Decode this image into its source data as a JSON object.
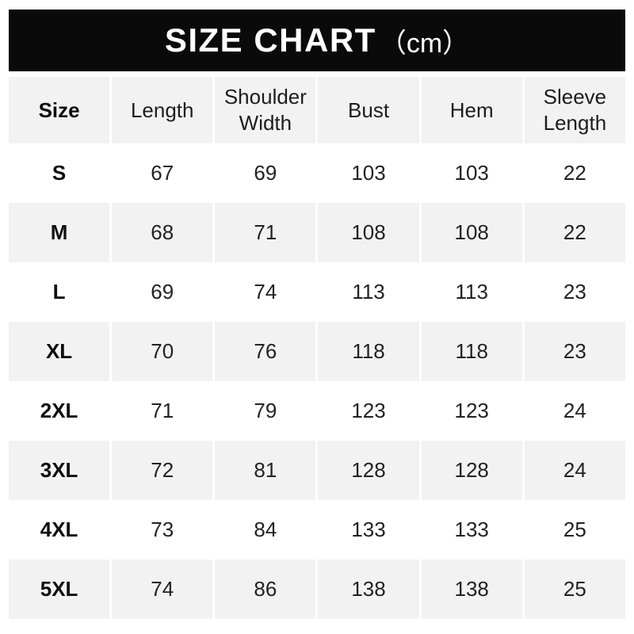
{
  "header": {
    "title": "SIZE CHART",
    "unit": "（cm）"
  },
  "table": {
    "columns": [
      "Size",
      "Length",
      "Shoulder Width",
      "Bust",
      "Hem",
      "Sleeve Length"
    ],
    "rows": [
      {
        "size": "S",
        "values": [
          "67",
          "69",
          "103",
          "103",
          "22"
        ]
      },
      {
        "size": "M",
        "values": [
          "68",
          "71",
          "108",
          "108",
          "22"
        ]
      },
      {
        "size": "L",
        "values": [
          "69",
          "74",
          "113",
          "113",
          "23"
        ]
      },
      {
        "size": "XL",
        "values": [
          "70",
          "76",
          "118",
          "118",
          "23"
        ]
      },
      {
        "size": "2XL",
        "values": [
          "71",
          "79",
          "123",
          "123",
          "24"
        ]
      },
      {
        "size": "3XL",
        "values": [
          "72",
          "81",
          "128",
          "128",
          "24"
        ]
      },
      {
        "size": "4XL",
        "values": [
          "73",
          "84",
          "133",
          "133",
          "25"
        ]
      },
      {
        "size": "5XL",
        "values": [
          "74",
          "86",
          "138",
          "138",
          "25"
        ]
      }
    ]
  },
  "colors": {
    "title_bar_bg": "#0a0a0a",
    "title_text": "#ffffff",
    "row_stripe": "#f2f2f2",
    "row_plain": "#ffffff",
    "cell_text": "#222222",
    "bold_text": "#0f0f0f"
  },
  "chart_data": {
    "type": "table",
    "title": "SIZE CHART（cm）",
    "unit": "cm",
    "columns": [
      "Size",
      "Length",
      "Shoulder Width",
      "Bust",
      "Hem",
      "Sleeve Length"
    ],
    "rows": [
      [
        "S",
        67,
        69,
        103,
        103,
        22
      ],
      [
        "M",
        68,
        71,
        108,
        108,
        22
      ],
      [
        "L",
        69,
        74,
        113,
        113,
        23
      ],
      [
        "XL",
        70,
        76,
        118,
        118,
        23
      ],
      [
        "2XL",
        71,
        79,
        123,
        123,
        24
      ],
      [
        "3XL",
        72,
        81,
        128,
        128,
        24
      ],
      [
        "4XL",
        73,
        84,
        133,
        133,
        25
      ],
      [
        "5XL",
        74,
        86,
        138,
        138,
        25
      ]
    ],
    "layout": {
      "striped_rows": true,
      "stripe_color": "#f2f2f2",
      "header_row_shaded": true
    }
  }
}
